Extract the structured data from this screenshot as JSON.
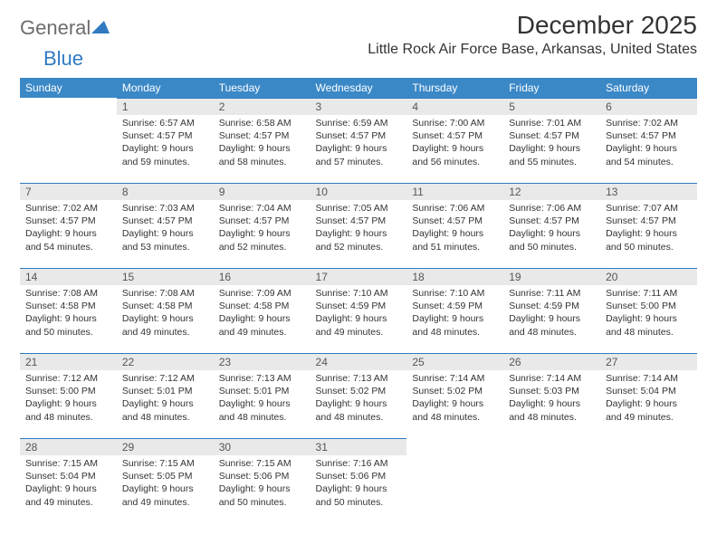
{
  "logo": {
    "word1": "General",
    "word2": "Blue",
    "tri_color": "#2f7ac0",
    "text_color": "#6d6d6d"
  },
  "title": "December 2025",
  "location": "Little Rock Air Force Base, Arkansas, United States",
  "header_bg": "#3b88c7",
  "header_fg": "#ffffff",
  "accent_line": "#2f7ac0",
  "daynum_bg": "#e9e9e9",
  "body_color": "#333333",
  "columns": [
    "Sunday",
    "Monday",
    "Tuesday",
    "Wednesday",
    "Thursday",
    "Friday",
    "Saturday"
  ],
  "weeks": [
    [
      null,
      {
        "n": "1",
        "sr": "6:57 AM",
        "ss": "4:57 PM",
        "dl": "9 hours and 59 minutes."
      },
      {
        "n": "2",
        "sr": "6:58 AM",
        "ss": "4:57 PM",
        "dl": "9 hours and 58 minutes."
      },
      {
        "n": "3",
        "sr": "6:59 AM",
        "ss": "4:57 PM",
        "dl": "9 hours and 57 minutes."
      },
      {
        "n": "4",
        "sr": "7:00 AM",
        "ss": "4:57 PM",
        "dl": "9 hours and 56 minutes."
      },
      {
        "n": "5",
        "sr": "7:01 AM",
        "ss": "4:57 PM",
        "dl": "9 hours and 55 minutes."
      },
      {
        "n": "6",
        "sr": "7:02 AM",
        "ss": "4:57 PM",
        "dl": "9 hours and 54 minutes."
      }
    ],
    [
      {
        "n": "7",
        "sr": "7:02 AM",
        "ss": "4:57 PM",
        "dl": "9 hours and 54 minutes."
      },
      {
        "n": "8",
        "sr": "7:03 AM",
        "ss": "4:57 PM",
        "dl": "9 hours and 53 minutes."
      },
      {
        "n": "9",
        "sr": "7:04 AM",
        "ss": "4:57 PM",
        "dl": "9 hours and 52 minutes."
      },
      {
        "n": "10",
        "sr": "7:05 AM",
        "ss": "4:57 PM",
        "dl": "9 hours and 52 minutes."
      },
      {
        "n": "11",
        "sr": "7:06 AM",
        "ss": "4:57 PM",
        "dl": "9 hours and 51 minutes."
      },
      {
        "n": "12",
        "sr": "7:06 AM",
        "ss": "4:57 PM",
        "dl": "9 hours and 50 minutes."
      },
      {
        "n": "13",
        "sr": "7:07 AM",
        "ss": "4:57 PM",
        "dl": "9 hours and 50 minutes."
      }
    ],
    [
      {
        "n": "14",
        "sr": "7:08 AM",
        "ss": "4:58 PM",
        "dl": "9 hours and 50 minutes."
      },
      {
        "n": "15",
        "sr": "7:08 AM",
        "ss": "4:58 PM",
        "dl": "9 hours and 49 minutes."
      },
      {
        "n": "16",
        "sr": "7:09 AM",
        "ss": "4:58 PM",
        "dl": "9 hours and 49 minutes."
      },
      {
        "n": "17",
        "sr": "7:10 AM",
        "ss": "4:59 PM",
        "dl": "9 hours and 49 minutes."
      },
      {
        "n": "18",
        "sr": "7:10 AM",
        "ss": "4:59 PM",
        "dl": "9 hours and 48 minutes."
      },
      {
        "n": "19",
        "sr": "7:11 AM",
        "ss": "4:59 PM",
        "dl": "9 hours and 48 minutes."
      },
      {
        "n": "20",
        "sr": "7:11 AM",
        "ss": "5:00 PM",
        "dl": "9 hours and 48 minutes."
      }
    ],
    [
      {
        "n": "21",
        "sr": "7:12 AM",
        "ss": "5:00 PM",
        "dl": "9 hours and 48 minutes."
      },
      {
        "n": "22",
        "sr": "7:12 AM",
        "ss": "5:01 PM",
        "dl": "9 hours and 48 minutes."
      },
      {
        "n": "23",
        "sr": "7:13 AM",
        "ss": "5:01 PM",
        "dl": "9 hours and 48 minutes."
      },
      {
        "n": "24",
        "sr": "7:13 AM",
        "ss": "5:02 PM",
        "dl": "9 hours and 48 minutes."
      },
      {
        "n": "25",
        "sr": "7:14 AM",
        "ss": "5:02 PM",
        "dl": "9 hours and 48 minutes."
      },
      {
        "n": "26",
        "sr": "7:14 AM",
        "ss": "5:03 PM",
        "dl": "9 hours and 48 minutes."
      },
      {
        "n": "27",
        "sr": "7:14 AM",
        "ss": "5:04 PM",
        "dl": "9 hours and 49 minutes."
      }
    ],
    [
      {
        "n": "28",
        "sr": "7:15 AM",
        "ss": "5:04 PM",
        "dl": "9 hours and 49 minutes."
      },
      {
        "n": "29",
        "sr": "7:15 AM",
        "ss": "5:05 PM",
        "dl": "9 hours and 49 minutes."
      },
      {
        "n": "30",
        "sr": "7:15 AM",
        "ss": "5:06 PM",
        "dl": "9 hours and 50 minutes."
      },
      {
        "n": "31",
        "sr": "7:16 AM",
        "ss": "5:06 PM",
        "dl": "9 hours and 50 minutes."
      },
      null,
      null,
      null
    ]
  ],
  "labels": {
    "sunrise": "Sunrise:",
    "sunset": "Sunset:",
    "daylight": "Daylight:"
  }
}
